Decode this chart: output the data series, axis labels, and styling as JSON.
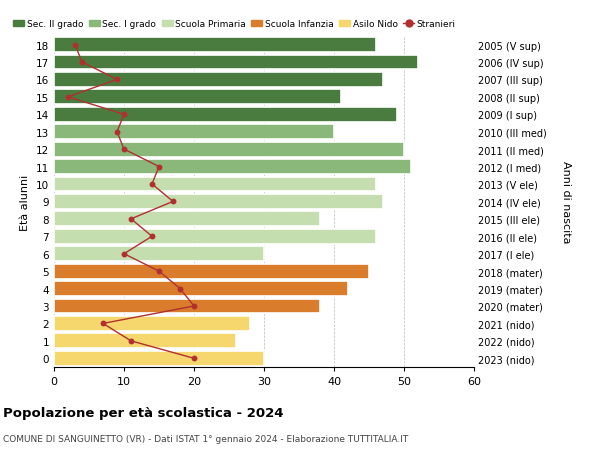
{
  "ages": [
    18,
    17,
    16,
    15,
    14,
    13,
    12,
    11,
    10,
    9,
    8,
    7,
    6,
    5,
    4,
    3,
    2,
    1,
    0
  ],
  "right_labels": [
    "2005 (V sup)",
    "2006 (IV sup)",
    "2007 (III sup)",
    "2008 (II sup)",
    "2009 (I sup)",
    "2010 (III med)",
    "2011 (II med)",
    "2012 (I med)",
    "2013 (V ele)",
    "2014 (IV ele)",
    "2015 (III ele)",
    "2016 (II ele)",
    "2017 (I ele)",
    "2018 (mater)",
    "2019 (mater)",
    "2020 (mater)",
    "2021 (nido)",
    "2022 (nido)",
    "2023 (nido)"
  ],
  "bar_values": [
    46,
    52,
    47,
    41,
    49,
    40,
    50,
    51,
    46,
    47,
    38,
    46,
    30,
    45,
    42,
    38,
    28,
    26,
    30
  ],
  "bar_colors": [
    "#4a7c3f",
    "#4a7c3f",
    "#4a7c3f",
    "#4a7c3f",
    "#4a7c3f",
    "#8ab87a",
    "#8ab87a",
    "#8ab87a",
    "#c5deb0",
    "#c5deb0",
    "#c5deb0",
    "#c5deb0",
    "#c5deb0",
    "#d97c2b",
    "#d97c2b",
    "#d97c2b",
    "#f5d76e",
    "#f5d76e",
    "#f5d76e"
  ],
  "stranieri_values": [
    3,
    4,
    9,
    2,
    10,
    9,
    10,
    15,
    14,
    17,
    11,
    14,
    10,
    15,
    18,
    20,
    7,
    11,
    20
  ],
  "legend_labels": [
    "Sec. II grado",
    "Sec. I grado",
    "Scuola Primaria",
    "Scuola Infanzia",
    "Asilo Nido",
    "Stranieri"
  ],
  "legend_colors": [
    "#4a7c3f",
    "#8ab87a",
    "#c5deb0",
    "#d97c2b",
    "#f5d76e",
    "#c0392b"
  ],
  "title": "Popolazione per età scolastica - 2024",
  "subtitle": "COMUNE DI SANGUINETTO (VR) - Dati ISTAT 1° gennaio 2024 - Elaborazione TUTTITALIA.IT",
  "ylabel_left": "Età alunni",
  "ylabel_right": "Anni di nascita",
  "xlim": [
    0,
    60
  ],
  "xticks": [
    0,
    10,
    20,
    30,
    40,
    50,
    60
  ],
  "stranieri_line_color": "#b03030",
  "bg_color": "#ffffff",
  "bar_edge_color": "#ffffff"
}
